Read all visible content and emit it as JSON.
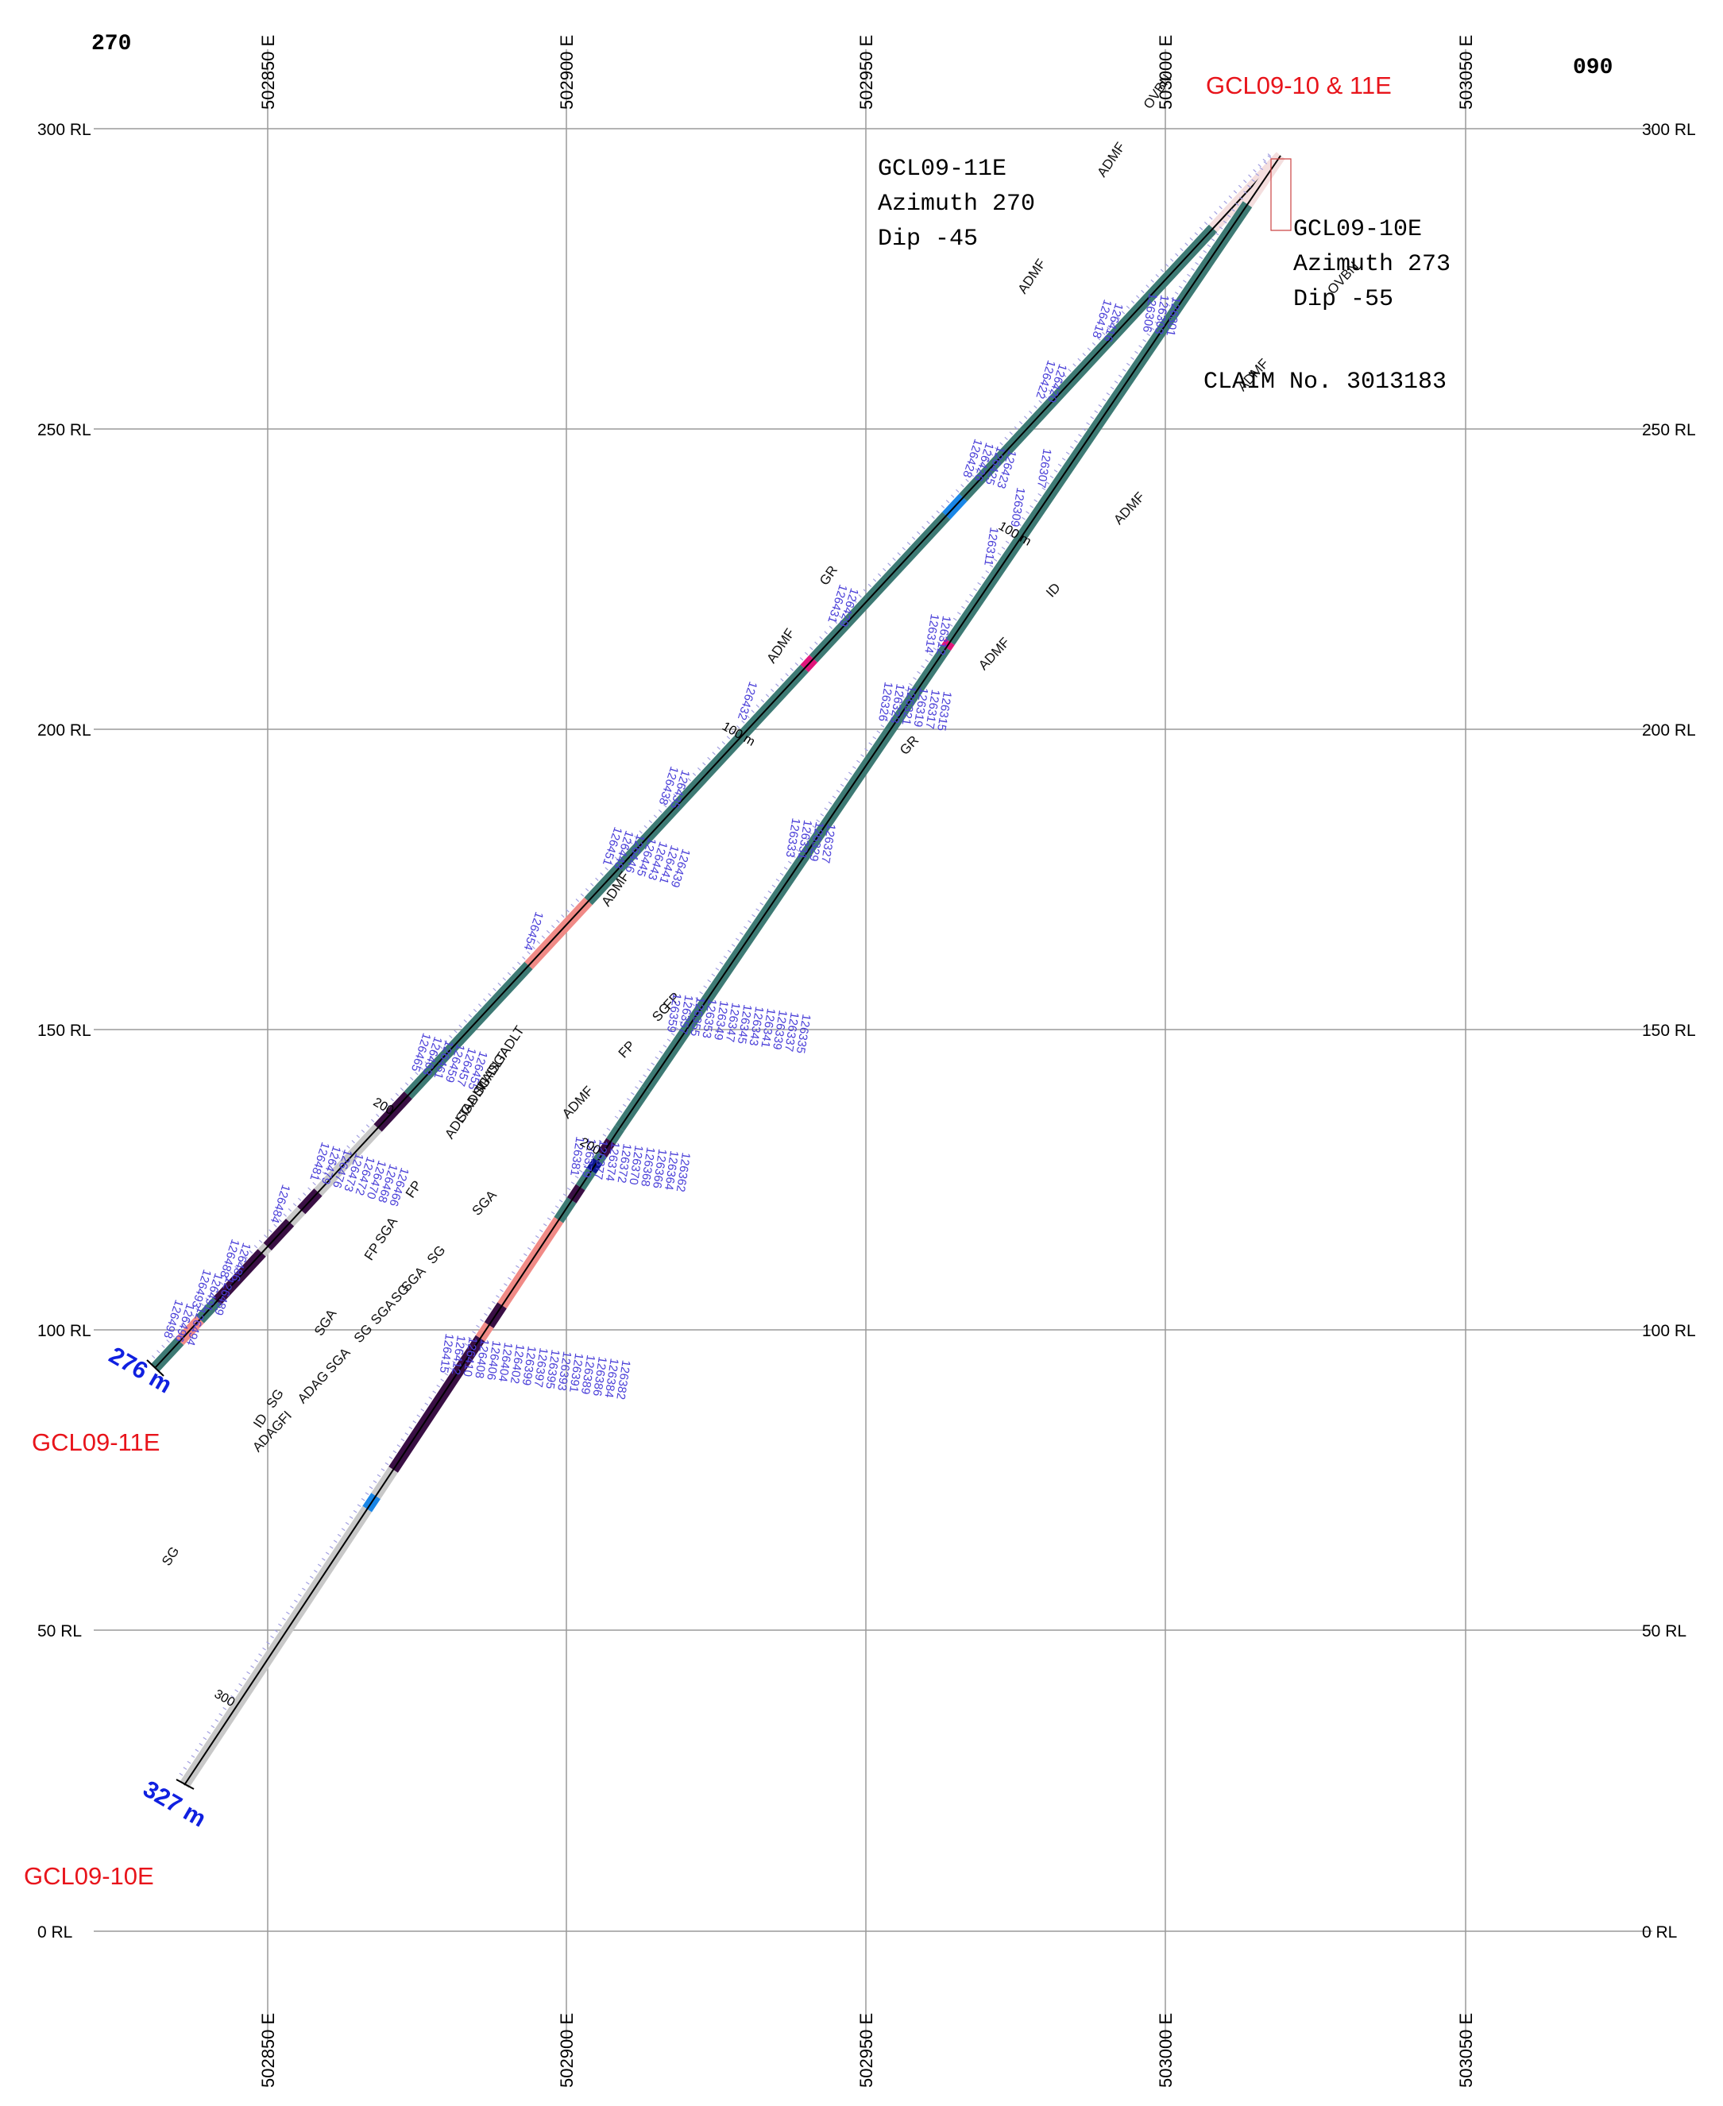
{
  "header": {
    "left_direction": "270",
    "right_direction": "090",
    "section_title": "GCL09-10 & 11E"
  },
  "colors": {
    "grid": "#9a9a9a",
    "red_label": "#e8141b",
    "blue_label": "#1020e0",
    "sample_label": "#4a3fd8",
    "ADMF": "#3d7a74",
    "ADLT": "#3d7a74",
    "ADAG": "#3d7a74",
    "SGA": "#3a0f44",
    "SG": "#c8c8c8",
    "FP": "#f08a86",
    "FI": "#f08a86",
    "ID": "#1a86e6",
    "GR": "#e0157a",
    "MI": "#0a1a8c",
    "OVBN": "#f4dede"
  },
  "easting_ticks": [
    "502850 E",
    "502900 E",
    "502950 E",
    "503000 E",
    "503050 E"
  ],
  "rl_ticks": [
    "300 RL",
    "250 RL",
    "200 RL",
    "150 RL",
    "100 RL",
    "50 RL",
    "0 RL"
  ],
  "holes": [
    {
      "id": "GCL09-11E",
      "title_block": {
        "name": "GCL09-11E",
        "azimuth": "Azimuth 270",
        "dip": "Dip -45"
      },
      "end_depth": "276 m",
      "bottom_label": "GCL09-11E",
      "depth_marks": [
        "100 m",
        "200"
      ],
      "units": [
        {
          "code": "OVBN",
          "from": 0,
          "to": 0.06
        },
        {
          "code": "ADMF",
          "from": 0.06,
          "to": 0.282
        },
        {
          "code": "ID",
          "from": 0.282,
          "to": 0.297
        },
        {
          "code": "ADMF",
          "from": 0.297,
          "to": 0.415
        },
        {
          "code": "GR",
          "from": 0.415,
          "to": 0.423
        },
        {
          "code": "ADMF",
          "from": 0.423,
          "to": 0.615
        },
        {
          "code": "FP",
          "from": 0.615,
          "to": 0.668
        },
        {
          "code": "ADMF",
          "from": 0.668,
          "to": 0.775
        },
        {
          "code": "SGA",
          "from": 0.775,
          "to": 0.802
        },
        {
          "code": "SG",
          "from": 0.802,
          "to": 0.855
        },
        {
          "code": "SGA",
          "from": 0.855,
          "to": 0.87
        },
        {
          "code": "SG",
          "from": 0.87,
          "to": 0.88
        },
        {
          "code": "SGA",
          "from": 0.88,
          "to": 0.9
        },
        {
          "code": "SG",
          "from": 0.9,
          "to": 0.905
        },
        {
          "code": "SGA",
          "from": 0.905,
          "to": 0.945
        },
        {
          "code": "ADAG",
          "from": 0.945,
          "to": 0.96
        },
        {
          "code": "FI",
          "from": 0.96,
          "to": 0.978
        },
        {
          "code": "ADAG",
          "from": 0.978,
          "to": 1.0
        }
      ],
      "unit_labels": [
        {
          "text": "OVBN",
          "at": 0.04
        },
        {
          "text": "ADMF",
          "at": 0.12
        },
        {
          "text": "ADMF",
          "at": 0.23
        },
        {
          "text": "ID",
          "at": 0.29
        },
        {
          "text": "ADMF",
          "at": 0.35
        },
        {
          "text": "GR",
          "at": 0.42
        },
        {
          "text": "FP",
          "at": 0.63
        },
        {
          "text": "SG",
          "at": 0.64
        },
        {
          "text": "FP",
          "at": 0.67
        },
        {
          "text": "ADMF",
          "at": 0.72
        },
        {
          "text": "SGA",
          "at": 0.8
        },
        {
          "text": "SG",
          "at": 0.84
        },
        {
          "text": "SGA",
          "at": 0.863
        },
        {
          "text": "SG",
          "at": 0.872
        },
        {
          "text": "SGA",
          "at": 0.89
        },
        {
          "text": "SG",
          "at": 0.905
        },
        {
          "text": "SGA",
          "at": 0.93
        },
        {
          "text": "ADAG",
          "at": 0.955
        },
        {
          "text": "FI",
          "at": 0.972
        },
        {
          "text": "ADAG",
          "at": 0.995
        }
      ],
      "sample_groups": [
        {
          "at": 0.165,
          "ids": [
            "126416",
            "126418"
          ]
        },
        {
          "at": 0.215,
          "ids": [
            "126420",
            "126422"
          ]
        },
        {
          "at": 0.28,
          "ids": [
            "126423",
            "126425",
            "126426",
            "126428"
          ]
        },
        {
          "at": 0.4,
          "ids": [
            "126429",
            "126431"
          ]
        },
        {
          "at": 0.48,
          "ids": [
            "126432"
          ]
        },
        {
          "at": 0.55,
          "ids": [
            "126435",
            "126438"
          ]
        },
        {
          "at": 0.6,
          "ids": [
            "126439",
            "126441",
            "126443",
            "126445",
            "126446",
            "126448",
            "126451"
          ]
        },
        {
          "at": 0.67,
          "ids": [
            "126454"
          ]
        },
        {
          "at": 0.77,
          "ids": [
            "126455",
            "126457",
            "126459",
            "126461",
            "126463",
            "126465"
          ]
        },
        {
          "at": 0.86,
          "ids": [
            "126466",
            "126468",
            "126470",
            "126472",
            "126473",
            "126476",
            "126479",
            "126481"
          ]
        },
        {
          "at": 0.895,
          "ids": [
            "126484"
          ]
        },
        {
          "at": 0.94,
          "ids": [
            "126486",
            "126488"
          ]
        },
        {
          "at": 0.965,
          "ids": [
            "126489",
            "126491",
            "126493"
          ]
        },
        {
          "at": 0.99,
          "ids": [
            "126494",
            "126496",
            "126498"
          ]
        }
      ]
    },
    {
      "id": "GCL09-10E",
      "title_block": {
        "name": "GCL09-10E",
        "azimuth": "Azimuth 273",
        "dip": "Dip -55"
      },
      "end_depth": "327 m",
      "bottom_label": "GCL09-10E",
      "depth_marks": [
        "100 m",
        "200",
        "300"
      ],
      "units": [
        {
          "code": "OVBN",
          "from": 0,
          "to": 0.05
        },
        {
          "code": "ADMF",
          "from": 0.05,
          "to": 0.5
        },
        {
          "code": "GR",
          "from": 0.5,
          "to": 0.506
        },
        {
          "code": "ADMF",
          "from": 0.506,
          "to": 0.96
        },
        {
          "code": "ADLT",
          "from": 0.96,
          "to": 1.0
        }
      ],
      "units_lower": [
        {
          "code": "ADLT",
          "from": 0.0,
          "to": 0.02
        },
        {
          "code": "SGA",
          "from": 0.02,
          "to": 0.04
        },
        {
          "code": "ADLT",
          "from": 0.04,
          "to": 0.05
        },
        {
          "code": "MI",
          "from": 0.05,
          "to": 0.065
        },
        {
          "code": "ADLT",
          "from": 0.065,
          "to": 0.09
        },
        {
          "code": "SGA",
          "from": 0.09,
          "to": 0.11
        },
        {
          "code": "ADLT",
          "from": 0.11,
          "to": 0.14
        },
        {
          "code": "FP",
          "from": 0.14,
          "to": 0.27
        },
        {
          "code": "SGA",
          "from": 0.27,
          "to": 0.3
        },
        {
          "code": "FP",
          "from": 0.3,
          "to": 0.32
        },
        {
          "code": "SGA",
          "from": 0.32,
          "to": 0.52
        },
        {
          "code": "SG",
          "from": 0.52,
          "to": 0.56
        },
        {
          "code": "ID",
          "from": 0.56,
          "to": 0.58
        },
        {
          "code": "SG",
          "from": 0.58,
          "to": 1.0
        }
      ],
      "unit_labels": [
        {
          "text": "OVBN",
          "at": 0.03
        },
        {
          "text": "ADMF",
          "at": 0.1
        },
        {
          "text": "ADMF",
          "at": 0.22
        },
        {
          "text": "GR",
          "at": 0.52
        },
        {
          "text": "ADMF",
          "at": 0.6
        },
        {
          "text": "ADMF",
          "at": 0.85
        }
      ],
      "unit_labels_lower": [
        {
          "text": "ADLT",
          "at": 0.005
        },
        {
          "text": "SGA",
          "at": 0.03
        },
        {
          "text": "ADLT",
          "at": 0.045
        },
        {
          "text": "MI",
          "at": 0.06
        },
        {
          "text": "SGA",
          "at": 0.065
        },
        {
          "text": "ADLT",
          "at": 0.09
        },
        {
          "text": "SGA",
          "at": 0.105
        },
        {
          "text": "ADLT",
          "at": 0.13
        },
        {
          "text": "FP",
          "at": 0.22
        },
        {
          "text": "SGA",
          "at": 0.29
        },
        {
          "text": "FP",
          "at": 0.315
        },
        {
          "text": "SGA",
          "at": 0.43
        },
        {
          "text": "SG",
          "at": 0.54
        },
        {
          "text": "ID",
          "at": 0.57
        },
        {
          "text": "SG",
          "at": 0.78
        }
      ],
      "sample_groups": [
        {
          "at": 0.2,
          "ids": [
            "126301",
            "126303",
            "126306"
          ]
        },
        {
          "at": 0.36,
          "ids": [
            "126307"
          ]
        },
        {
          "at": 0.4,
          "ids": [
            "126309"
          ]
        },
        {
          "at": 0.44,
          "ids": [
            "126311"
          ]
        },
        {
          "at": 0.53,
          "ids": [
            "126312",
            "126314"
          ]
        },
        {
          "at": 0.6,
          "ids": [
            "126315",
            "126317",
            "126319",
            "126321",
            "126323",
            "126326"
          ]
        },
        {
          "at": 0.74,
          "ids": [
            "126327",
            "126329",
            "126331",
            "126333"
          ]
        },
        {
          "at": 0.92,
          "ids": [
            "126335",
            "126337",
            "126339",
            "126341",
            "126343",
            "126345",
            "126347",
            "126349",
            "126353",
            "126355",
            "126357",
            "126359"
          ]
        }
      ],
      "sample_groups_lower": [
        {
          "at": 0.1,
          "ids": [
            "126362",
            "126364",
            "126366",
            "126368",
            "126370",
            "126372",
            "126374",
            "126377",
            "126379",
            "126381"
          ]
        },
        {
          "at": 0.4,
          "ids": [
            "126382",
            "126384",
            "126386",
            "126389",
            "126391",
            "126393",
            "126395",
            "126397",
            "126399",
            "126402",
            "126404",
            "126406",
            "126408",
            "126410",
            "126412",
            "126415"
          ]
        }
      ]
    }
  ],
  "claim": "CLAIM No. 3013183"
}
